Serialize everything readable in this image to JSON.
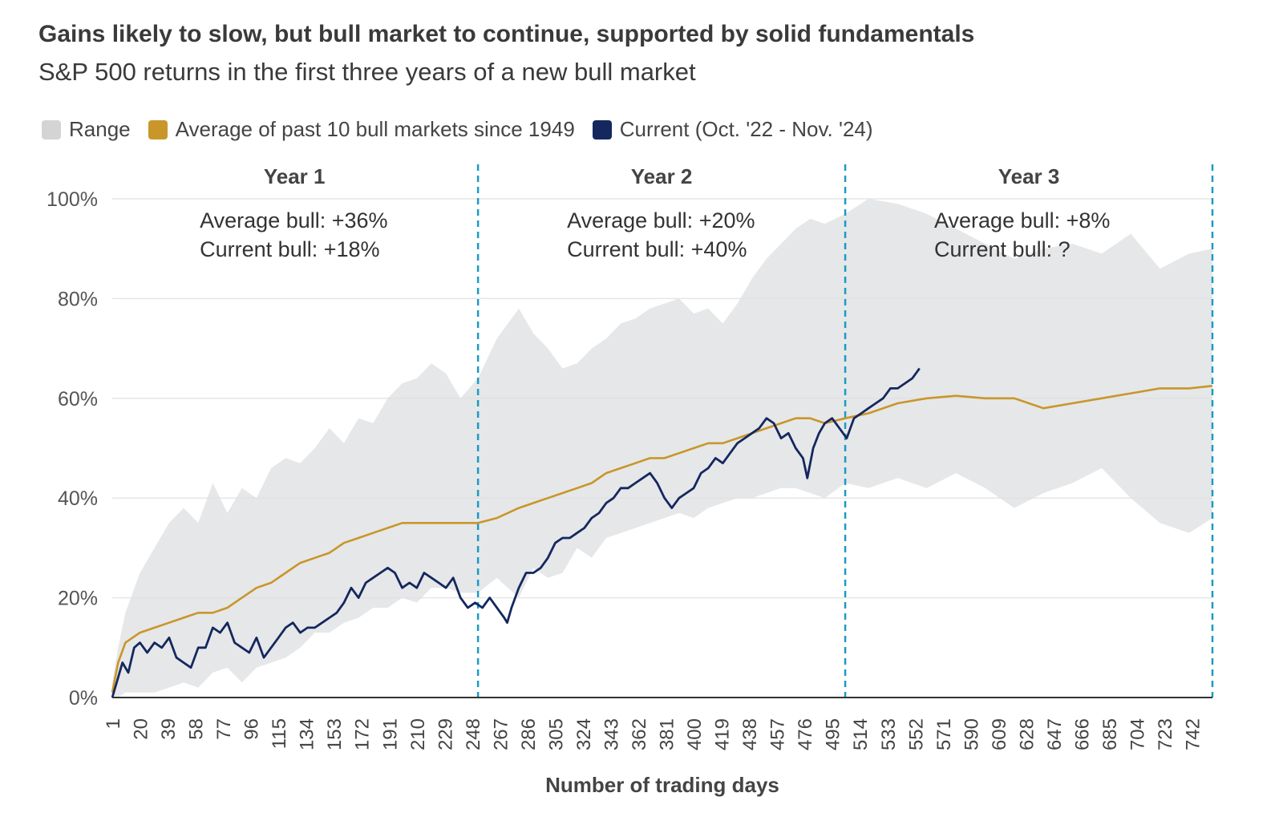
{
  "title": "Gains likely to slow, but bull market to continue, supported by solid fundamentals",
  "subtitle": "S&P 500 returns in the first three years of a new bull market",
  "legend": [
    {
      "label": "Range",
      "color": "#d4d4d4"
    },
    {
      "label": "Average of past 10 bull markets since 1949",
      "color": "#c9962a"
    },
    {
      "label": "Current (Oct. '22 - Nov. '24)",
      "color": "#14285e"
    }
  ],
  "chart_data": {
    "type": "line",
    "xlabel": "Number of trading days",
    "ylabel": "",
    "xlim": [
      1,
      756
    ],
    "ylim": [
      0,
      100
    ],
    "yticks": [
      "0%",
      "20%",
      "40%",
      "60%",
      "80%",
      "100%"
    ],
    "ytick_values": [
      0,
      20,
      40,
      60,
      80,
      100
    ],
    "xticks": [
      1,
      20,
      39,
      58,
      77,
      96,
      115,
      134,
      153,
      172,
      191,
      210,
      229,
      248,
      267,
      286,
      305,
      324,
      343,
      362,
      381,
      400,
      419,
      438,
      457,
      476,
      495,
      514,
      533,
      552,
      571,
      590,
      609,
      628,
      647,
      666,
      685,
      704,
      723,
      742
    ],
    "grid": "horizontal",
    "legend_position": "top-left",
    "year_dividers": [
      252,
      504,
      756
    ],
    "years": [
      {
        "label": "Year 1",
        "x_center": 126,
        "line1": "Average bull: +36%",
        "line2": "Current bull: +18%"
      },
      {
        "label": "Year 2",
        "x_center": 378,
        "line1": "Average bull: +20%",
        "line2": "Current bull: +40%"
      },
      {
        "label": "Year 3",
        "x_center": 630,
        "line1": "Average bull: +8%",
        "line2": "Current bull: ?"
      }
    ],
    "series": [
      {
        "name": "Range",
        "kind": "band",
        "color": "#dedfe2",
        "x": [
          1,
          5,
          10,
          20,
          30,
          40,
          50,
          60,
          70,
          80,
          90,
          100,
          110,
          120,
          130,
          140,
          150,
          160,
          170,
          180,
          190,
          200,
          210,
          220,
          230,
          240,
          252,
          265,
          280,
          290,
          300,
          310,
          320,
          330,
          340,
          350,
          360,
          370,
          380,
          390,
          400,
          410,
          420,
          430,
          440,
          450,
          460,
          470,
          480,
          490,
          504,
          520,
          540,
          560,
          580,
          600,
          620,
          640,
          660,
          680,
          700,
          720,
          740,
          756
        ],
        "upper": [
          3,
          10,
          17,
          25,
          30,
          35,
          38,
          35,
          43,
          37,
          42,
          40,
          46,
          48,
          47,
          50,
          54,
          51,
          56,
          55,
          60,
          63,
          64,
          67,
          65,
          60,
          64,
          72,
          78,
          73,
          70,
          66,
          67,
          70,
          72,
          75,
          76,
          78,
          79,
          80,
          77,
          78,
          75,
          79,
          84,
          88,
          91,
          94,
          96,
          95,
          97,
          100,
          99,
          97,
          94,
          91,
          88,
          90,
          91,
          89,
          93,
          86,
          89,
          90
        ],
        "lower": [
          0,
          0,
          1,
          1,
          1,
          2,
          3,
          2,
          5,
          6,
          3,
          6,
          7,
          8,
          10,
          13,
          13,
          15,
          16,
          18,
          18,
          20,
          19,
          22,
          22,
          21,
          21,
          24,
          20,
          26,
          24,
          25,
          30,
          28,
          32,
          33,
          34,
          35,
          36,
          37,
          36,
          38,
          39,
          40,
          40,
          41,
          42,
          42,
          41,
          40,
          43,
          42,
          44,
          42,
          45,
          42,
          38,
          41,
          43,
          46,
          40,
          35,
          33,
          36
        ]
      },
      {
        "name": "Average of past 10 bull markets since 1949",
        "kind": "line",
        "color": "#c9962a",
        "x": [
          1,
          5,
          10,
          20,
          30,
          40,
          50,
          60,
          70,
          80,
          90,
          100,
          110,
          120,
          130,
          140,
          150,
          160,
          170,
          180,
          190,
          200,
          210,
          220,
          230,
          240,
          252,
          265,
          280,
          290,
          300,
          310,
          320,
          330,
          340,
          350,
          360,
          370,
          380,
          390,
          400,
          410,
          420,
          430,
          440,
          450,
          460,
          470,
          480,
          490,
          504,
          520,
          540,
          560,
          580,
          600,
          620,
          640,
          660,
          680,
          700,
          720,
          740,
          756
        ],
        "values": [
          1,
          7,
          11,
          13,
          14,
          15,
          16,
          17,
          17,
          18,
          20,
          22,
          23,
          25,
          27,
          28,
          29,
          31,
          32,
          33,
          34,
          35,
          35,
          35,
          35,
          35,
          35,
          36,
          38,
          39,
          40,
          41,
          42,
          43,
          45,
          46,
          47,
          48,
          48,
          49,
          50,
          51,
          51,
          52,
          53,
          54,
          55,
          56,
          56,
          55,
          56,
          57,
          59,
          60,
          60.5,
          60,
          60,
          58,
          59,
          60,
          61,
          62,
          62,
          62.5
        ]
      },
      {
        "name": "Current (Oct. '22 - Nov. '24)",
        "kind": "line",
        "color": "#14285e",
        "x": [
          1,
          4,
          8,
          12,
          16,
          20,
          25,
          30,
          35,
          40,
          45,
          50,
          55,
          60,
          65,
          70,
          75,
          80,
          85,
          90,
          95,
          100,
          105,
          110,
          115,
          120,
          125,
          130,
          135,
          140,
          145,
          150,
          155,
          160,
          165,
          170,
          175,
          180,
          185,
          190,
          195,
          200,
          205,
          210,
          215,
          220,
          225,
          230,
          235,
          240,
          245,
          250,
          255,
          260,
          265,
          270,
          272,
          275,
          280,
          285,
          290,
          295,
          300,
          305,
          310,
          315,
          320,
          325,
          330,
          335,
          340,
          345,
          350,
          355,
          360,
          365,
          370,
          375,
          380,
          385,
          390,
          395,
          400,
          405,
          410,
          415,
          420,
          425,
          430,
          435,
          440,
          445,
          450,
          455,
          460,
          465,
          470,
          475,
          478,
          482,
          486,
          490,
          495,
          500,
          505,
          510,
          515,
          520,
          525,
          530,
          535,
          540,
          545,
          550,
          555
        ],
        "values": [
          0,
          3,
          7,
          5,
          10,
          11,
          9,
          11,
          10,
          12,
          8,
          7,
          6,
          10,
          10,
          14,
          13,
          15,
          11,
          10,
          9,
          12,
          8,
          10,
          12,
          14,
          15,
          13,
          14,
          14,
          15,
          16,
          17,
          19,
          22,
          20,
          23,
          24,
          25,
          26,
          25,
          22,
          23,
          22,
          25,
          24,
          23,
          22,
          24,
          20,
          18,
          19,
          18,
          20,
          18,
          16,
          15,
          18,
          22,
          25,
          25,
          26,
          28,
          31,
          32,
          32,
          33,
          34,
          36,
          37,
          39,
          40,
          42,
          42,
          43,
          44,
          45,
          43,
          40,
          38,
          40,
          41,
          42,
          45,
          46,
          48,
          47,
          49,
          51,
          52,
          53,
          54,
          56,
          55,
          52,
          53,
          50,
          48,
          44,
          50,
          53,
          55,
          56,
          54,
          52,
          56,
          57,
          58,
          59,
          60,
          62,
          62,
          63,
          64,
          66
        ]
      }
    ]
  }
}
